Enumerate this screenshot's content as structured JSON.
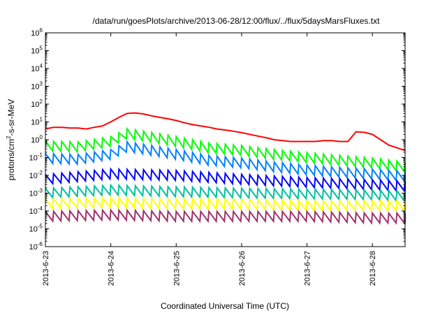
{
  "chart_data": {
    "type": "line",
    "title": "/data/run/goesPlots/archive/2013-06-28/12:00/flux/../flux/5daysMarsFluxes.txt",
    "xlabel": "Coordinated Universal Time (UTC)",
    "ylabel_parts": {
      "base": "protons/cm",
      "sup": "2",
      "rest": "-s-sr-MeV"
    },
    "yscale": "log",
    "ylim": [
      1e-06,
      1000000
    ],
    "yticks": [
      {
        "value": 1e-06,
        "base": "10",
        "exp": "-6"
      },
      {
        "value": 1e-05,
        "base": "10",
        "exp": "-5"
      },
      {
        "value": 0.0001,
        "base": "10",
        "exp": "-4"
      },
      {
        "value": 0.001,
        "base": "10",
        "exp": "-3"
      },
      {
        "value": 0.01,
        "base": "10",
        "exp": "-2"
      },
      {
        "value": 0.1,
        "base": "10",
        "exp": "-1"
      },
      {
        "value": 1,
        "base": "10",
        "exp": "0"
      },
      {
        "value": 10,
        "base": "10",
        "exp": "1"
      },
      {
        "value": 100,
        "base": "10",
        "exp": "2"
      },
      {
        "value": 1000,
        "base": "10",
        "exp": "3"
      },
      {
        "value": 10000,
        "base": "10",
        "exp": "4"
      },
      {
        "value": 100000,
        "base": "10",
        "exp": "5"
      },
      {
        "value": 1000000,
        "base": "10",
        "exp": "6"
      }
    ],
    "xlim": [
      "2013-06-23 00:00",
      "2013-06-28 12:00"
    ],
    "xticks": [
      "2013-6-23",
      "2013-6-24",
      "2013-6-25",
      "2013-6-26",
      "2013-6-27",
      "2013-6-28"
    ],
    "grid": false,
    "legend": "none",
    "series": [
      {
        "color": "#ff0000",
        "sawtooth": false,
        "x": [
          "2013-06-23 00:00",
          "2013-06-23 03:00",
          "2013-06-23 06:00",
          "2013-06-23 09:00",
          "2013-06-23 12:00",
          "2013-06-23 15:00",
          "2013-06-23 18:00",
          "2013-06-23 21:00",
          "2013-06-24 00:00",
          "2013-06-24 03:00",
          "2013-06-24 06:00",
          "2013-06-24 09:00",
          "2013-06-24 12:00",
          "2013-06-24 15:00",
          "2013-06-24 18:00",
          "2013-06-24 21:00",
          "2013-06-25 00:00",
          "2013-06-25 03:00",
          "2013-06-25 06:00",
          "2013-06-25 09:00",
          "2013-06-25 12:00",
          "2013-06-25 15:00",
          "2013-06-25 18:00",
          "2013-06-25 21:00",
          "2013-06-26 00:00",
          "2013-06-26 03:00",
          "2013-06-26 06:00",
          "2013-06-26 09:00",
          "2013-06-26 12:00",
          "2013-06-26 15:00",
          "2013-06-26 18:00",
          "2013-06-26 21:00",
          "2013-06-27 00:00",
          "2013-06-27 03:00",
          "2013-06-27 06:00",
          "2013-06-27 09:00",
          "2013-06-27 12:00",
          "2013-06-27 15:00",
          "2013-06-27 18:00",
          "2013-06-27 21:00",
          "2013-06-28 00:00",
          "2013-06-28 03:00",
          "2013-06-28 06:00",
          "2013-06-28 09:00",
          "2013-06-28 12:00"
        ],
        "y": [
          4,
          5,
          5,
          4.5,
          4.5,
          4,
          5,
          6,
          10,
          18,
          30,
          32,
          28,
          22,
          18,
          15,
          12,
          9,
          7,
          6,
          5,
          4,
          3.5,
          3,
          2.5,
          2,
          1.6,
          1.3,
          1,
          0.9,
          0.8,
          0.8,
          0.8,
          0.8,
          0.9,
          0.9,
          0.8,
          0.8,
          2.8,
          2.6,
          2,
          1,
          0.5,
          0.35,
          0.25
        ]
      },
      {
        "color": "#00ff00",
        "sawtooth": true,
        "x": [
          "2013-06-23 00:00",
          "2013-06-23 12:00",
          "2013-06-24 00:00",
          "2013-06-24 06:00",
          "2013-06-24 12:00",
          "2013-06-25 00:00",
          "2013-06-25 12:00",
          "2013-06-26 00:00",
          "2013-06-26 12:00",
          "2013-06-27 00:00",
          "2013-06-27 12:00",
          "2013-06-28 00:00",
          "2013-06-28 12:00"
        ],
        "y": [
          0.45,
          0.4,
          0.8,
          2.2,
          1.6,
          0.8,
          0.35,
          0.25,
          0.15,
          0.1,
          0.07,
          0.05,
          0.03
        ]
      },
      {
        "color": "#0080ff",
        "sawtooth": true,
        "x": [
          "2013-06-23 00:00",
          "2013-06-23 12:00",
          "2013-06-24 00:00",
          "2013-06-24 06:00",
          "2013-06-24 12:00",
          "2013-06-25 00:00",
          "2013-06-25 12:00",
          "2013-06-26 00:00",
          "2013-06-26 12:00",
          "2013-06-27 00:00",
          "2013-06-27 12:00",
          "2013-06-28 00:00",
          "2013-06-28 12:00"
        ],
        "y": [
          0.09,
          0.08,
          0.15,
          0.4,
          0.3,
          0.15,
          0.07,
          0.05,
          0.03,
          0.02,
          0.015,
          0.012,
          0.009
        ]
      },
      {
        "color": "#0000ff",
        "sawtooth": true,
        "x": [
          "2013-06-23 00:00",
          "2013-06-24 00:00",
          "2013-06-25 00:00",
          "2013-06-26 00:00",
          "2013-06-27 00:00",
          "2013-06-28 00:00",
          "2013-06-28 12:00"
        ],
        "y": [
          0.006,
          0.012,
          0.01,
          0.006,
          0.004,
          0.003,
          0.0025
        ]
      },
      {
        "color": "#00c0a0",
        "sawtooth": true,
        "x": [
          "2013-06-23 00:00",
          "2013-06-24 00:00",
          "2013-06-25 00:00",
          "2013-06-26 00:00",
          "2013-06-27 00:00",
          "2013-06-28 00:00",
          "2013-06-28 12:00"
        ],
        "y": [
          0.001,
          0.0015,
          0.0012,
          0.001,
          0.0009,
          0.0008,
          0.0007
        ]
      },
      {
        "color": "#ffff00",
        "sawtooth": true,
        "x": [
          "2013-06-23 00:00",
          "2013-06-24 00:00",
          "2013-06-25 00:00",
          "2013-06-26 00:00",
          "2013-06-27 00:00",
          "2013-06-28 00:00",
          "2013-06-28 12:00"
        ],
        "y": [
          0.00025,
          0.0003,
          0.00025,
          0.00025,
          0.0002,
          0.0002,
          0.0002
        ]
      },
      {
        "color": "#a0306a",
        "sawtooth": true,
        "x": [
          "2013-06-23 00:00",
          "2013-06-24 00:00",
          "2013-06-25 00:00",
          "2013-06-26 00:00",
          "2013-06-27 00:00",
          "2013-06-28 00:00",
          "2013-06-28 12:00"
        ],
        "y": [
          5e-05,
          6e-05,
          5e-05,
          5e-05,
          5e-05,
          4e-05,
          4e-05
        ]
      }
    ]
  }
}
